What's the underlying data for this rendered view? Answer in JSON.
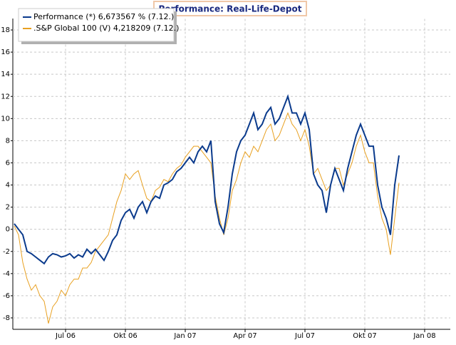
{
  "chart_data": {
    "type": "line",
    "title": "Performance: Real-Life-Depot",
    "categories": [
      null,
      null,
      null,
      null,
      null,
      null,
      null,
      null,
      null,
      null,
      null,
      null,
      "Jul 06",
      null,
      null,
      null,
      null,
      null,
      null,
      null,
      null,
      null,
      null,
      null,
      null,
      null,
      "Okt 06",
      null,
      null,
      null,
      null,
      null,
      null,
      null,
      null,
      null,
      null,
      null,
      null,
      null,
      "Jan 07",
      null,
      null,
      null,
      null,
      null,
      null,
      null,
      null,
      null,
      null,
      null,
      null,
      null,
      "Apr 07",
      null,
      null,
      null,
      null,
      null,
      null,
      null,
      null,
      null,
      null,
      null,
      null,
      null,
      "Jul 07",
      null,
      null,
      null,
      null,
      null,
      null,
      null,
      null,
      null,
      null,
      null,
      null,
      null,
      "Okt 07",
      null,
      null,
      null,
      null,
      null,
      null,
      null,
      null,
      null,
      null,
      null,
      null,
      null,
      "Jan 08"
    ],
    "series": [
      {
        "name": "Performance (*) 6,673567 % (7.12.)",
        "color": "#0a3a8c",
        "values": [
          0.5,
          0,
          -0.5,
          -2,
          -2.2,
          -2.5,
          -2.8,
          -3.1,
          -2.5,
          -2.2,
          -2.3,
          -2.5,
          -2.4,
          -2.2,
          -2.6,
          -2.3,
          -2.5,
          -1.8,
          -2.2,
          -1.8,
          -2.3,
          -2.8,
          -2,
          -1,
          -0.5,
          0.8,
          1.5,
          1.8,
          1,
          2,
          2.5,
          1.5,
          2.5,
          3,
          2.8,
          4,
          4.2,
          4.5,
          5.2,
          5.5,
          6,
          6.5,
          6,
          7,
          7.5,
          7,
          8,
          2.5,
          0.5,
          -0.3,
          2,
          5,
          7,
          8,
          8.5,
          9.5,
          10.5,
          9,
          9.5,
          10.5,
          11,
          9.5,
          10,
          11,
          12,
          10.5,
          10.5,
          9.5,
          10.5,
          9,
          5,
          4,
          3.5,
          1.5,
          4,
          5.5,
          4.5,
          3.5,
          5.5,
          7,
          8.5,
          9.5,
          8.5,
          7.5,
          7.5,
          4,
          2,
          1,
          -0.5,
          4,
          6.67,
          null,
          null,
          null,
          null,
          null,
          null
        ]
      },
      {
        "name": ".S&P Global 100 (V) 4,218209 (7.12.)",
        "color": "#e8a020",
        "values": [
          0.3,
          -0.5,
          -3,
          -4.5,
          -5.5,
          -5,
          -6,
          -6.5,
          -8.5,
          -7,
          -6.5,
          -5.5,
          -6,
          -5,
          -4.5,
          -4.5,
          -3.5,
          -3.5,
          -3,
          -2,
          -1.5,
          -1,
          -0.5,
          1,
          2.5,
          3.5,
          5,
          4.5,
          5,
          5.3,
          4,
          2.8,
          2.5,
          3.5,
          3.8,
          4.5,
          4.3,
          5,
          5.5,
          5.8,
          6.5,
          7,
          7.5,
          7.5,
          7,
          6.5,
          6,
          3,
          1,
          -0.5,
          1,
          3.5,
          4.5,
          6,
          7,
          6.5,
          7.5,
          7,
          8,
          9,
          9.5,
          8,
          8.5,
          9.5,
          10.5,
          9.5,
          9,
          8,
          9,
          7.5,
          5,
          5.5,
          4.5,
          3.5,
          4,
          5.5,
          5.5,
          4,
          5,
          6,
          7.5,
          8.5,
          7,
          6,
          6,
          3,
          1,
          0,
          -2.3,
          1,
          4.2,
          null,
          null,
          null,
          null,
          null,
          null
        ]
      }
    ],
    "ylim": [
      -9,
      19
    ],
    "yticks": [
      -8,
      -6,
      -4,
      -2,
      0,
      2,
      4,
      6,
      8,
      10,
      12,
      14,
      16,
      18
    ],
    "grid": true
  }
}
